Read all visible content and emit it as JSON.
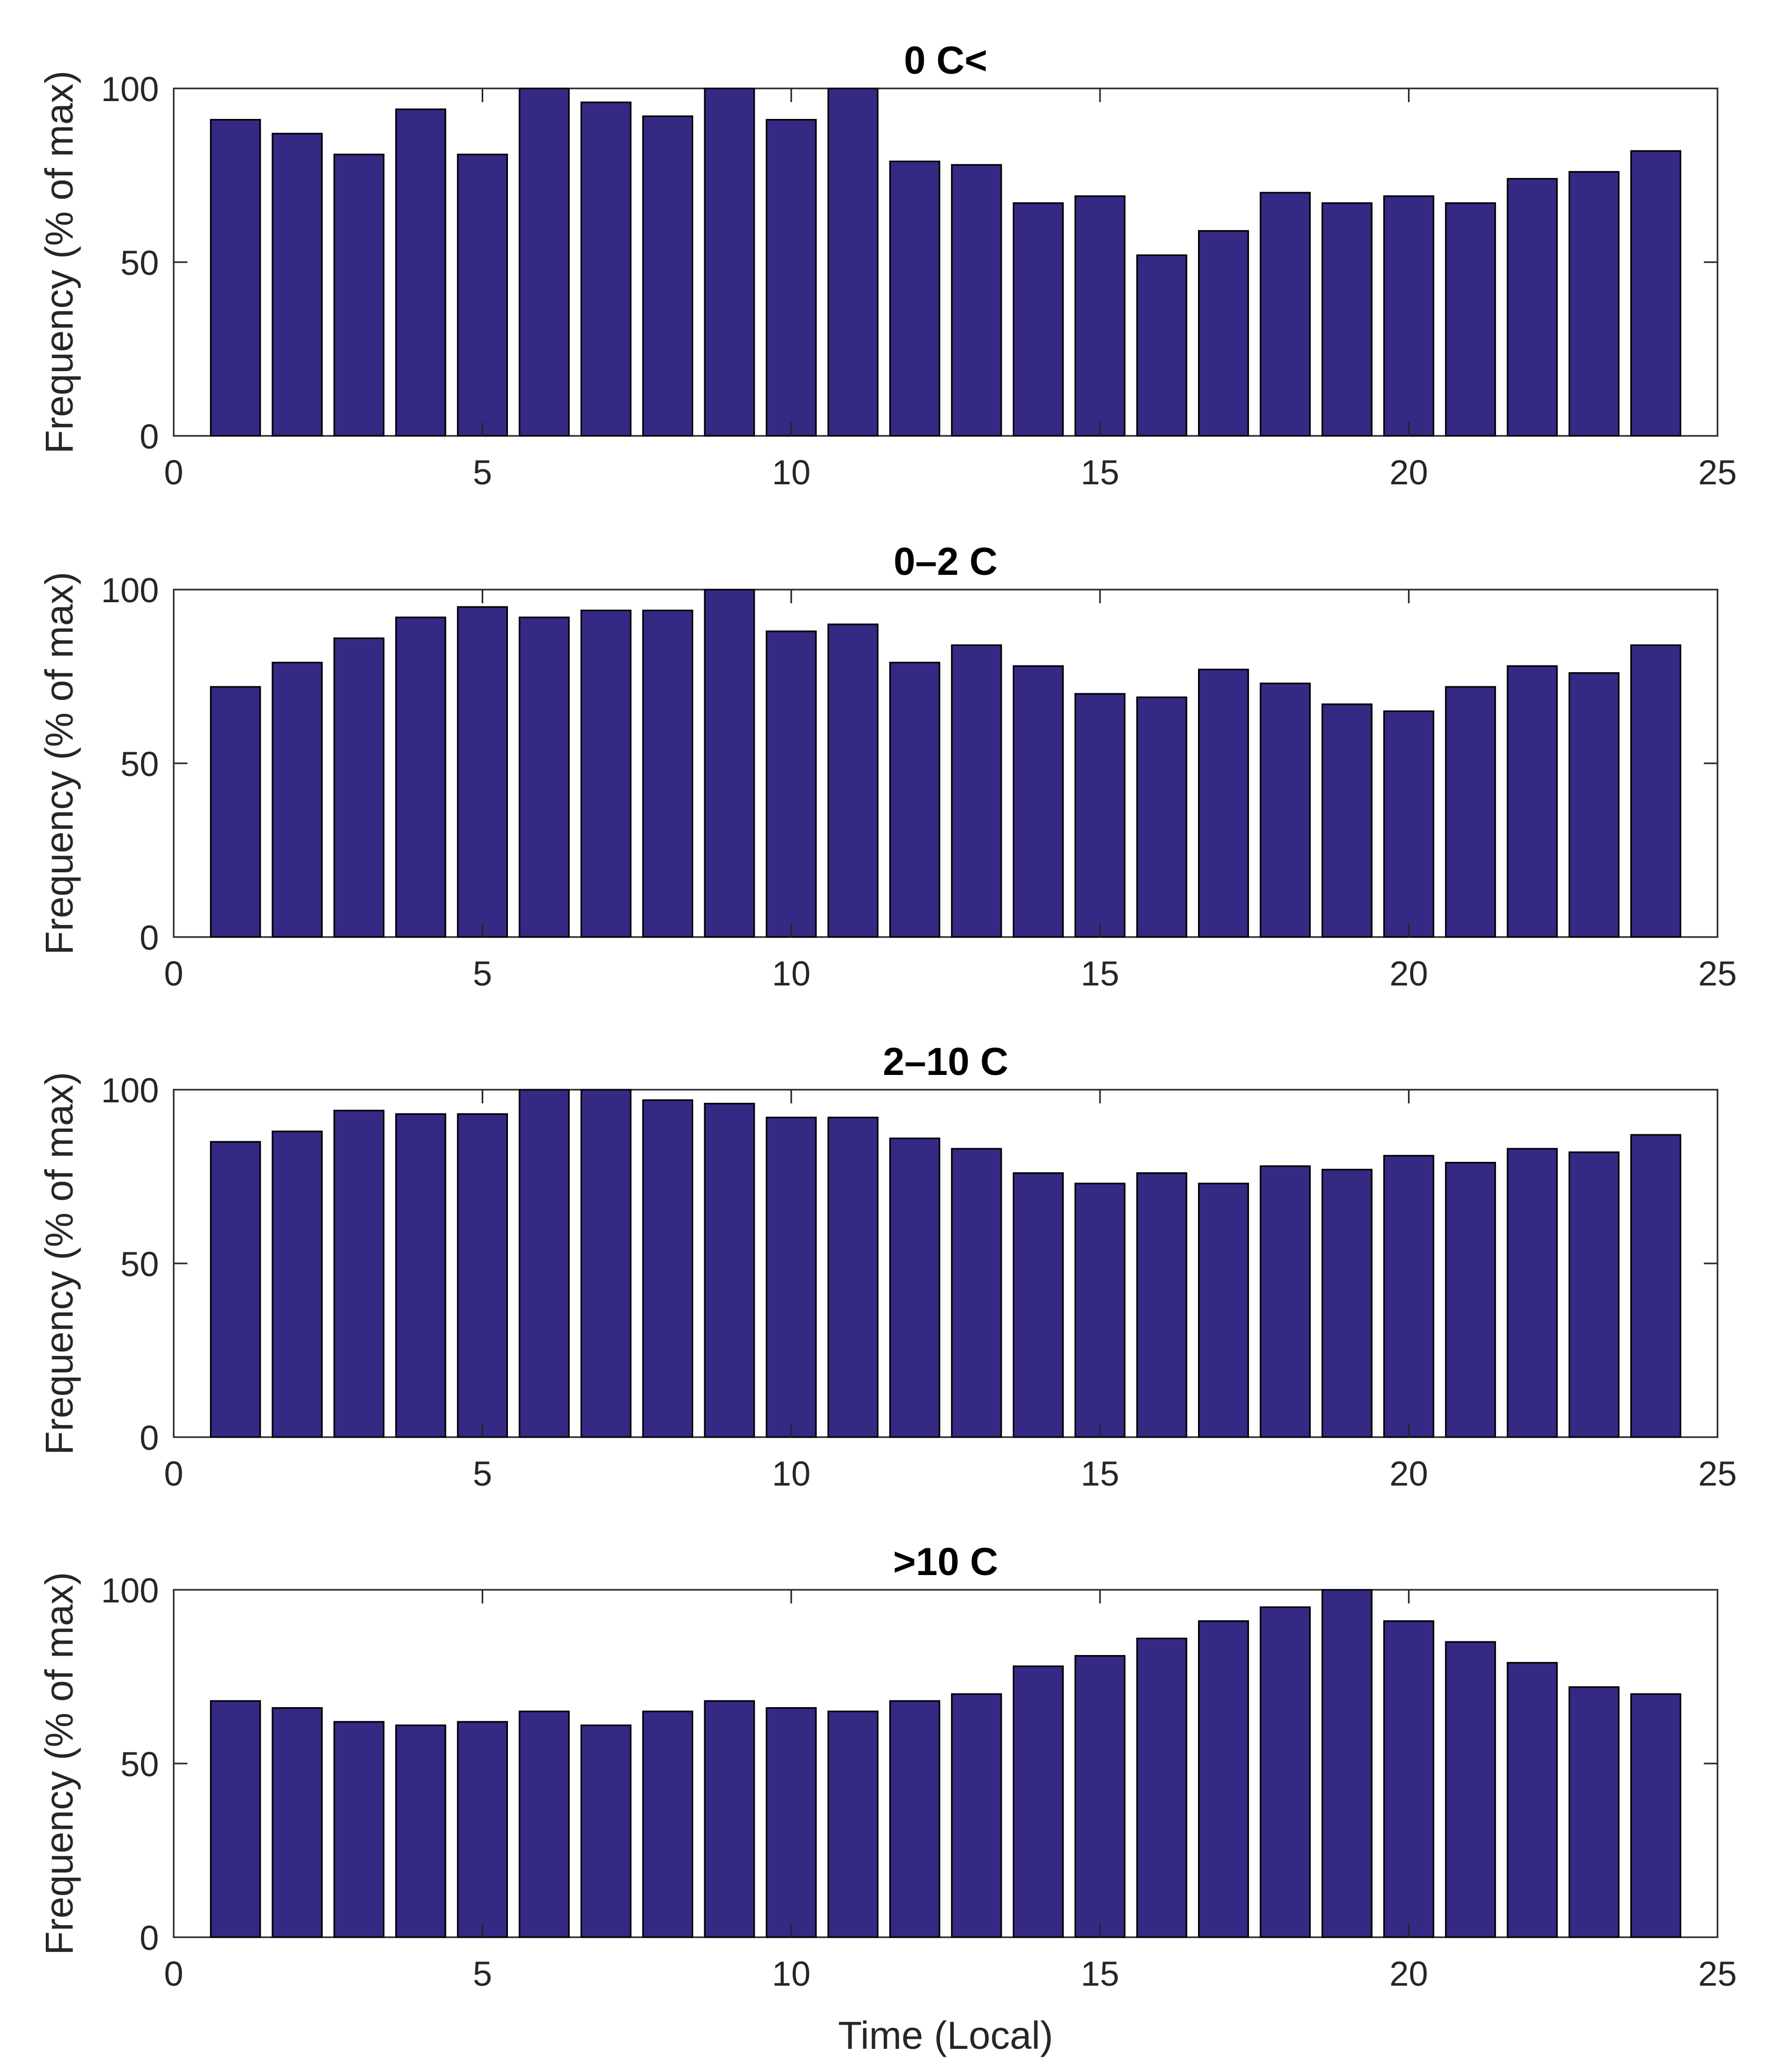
{
  "colors": {
    "bar_fill": "#342a84",
    "bar_edge": "#000000",
    "axes": "#262626"
  },
  "shared_xlabel": "Time (Local)",
  "chart_data": [
    {
      "type": "bar",
      "title": "0 C<",
      "xlabel": "",
      "ylabel": "Frequency (% of max)",
      "x": [
        1,
        2,
        3,
        4,
        5,
        6,
        7,
        8,
        9,
        10,
        11,
        12,
        13,
        14,
        15,
        16,
        17,
        18,
        19,
        20,
        21,
        22,
        23,
        24
      ],
      "values": [
        91,
        87,
        81,
        94,
        81,
        100,
        96,
        92,
        100,
        91,
        100,
        79,
        78,
        67,
        69,
        52,
        59,
        70,
        67,
        69,
        67,
        74,
        76,
        82
      ],
      "xlim": [
        0,
        25
      ],
      "ylim": [
        0,
        100
      ],
      "xticks": [
        0,
        5,
        10,
        15,
        20,
        25
      ],
      "yticks": [
        0,
        50,
        100
      ]
    },
    {
      "type": "bar",
      "title": "0–2 C",
      "xlabel": "",
      "ylabel": "Frequency (% of max)",
      "x": [
        1,
        2,
        3,
        4,
        5,
        6,
        7,
        8,
        9,
        10,
        11,
        12,
        13,
        14,
        15,
        16,
        17,
        18,
        19,
        20,
        21,
        22,
        23,
        24
      ],
      "values": [
        72,
        79,
        86,
        92,
        95,
        92,
        94,
        94,
        100,
        88,
        90,
        79,
        84,
        78,
        70,
        69,
        77,
        73,
        67,
        65,
        72,
        78,
        76,
        84
      ],
      "xlim": [
        0,
        25
      ],
      "ylim": [
        0,
        100
      ],
      "xticks": [
        0,
        5,
        10,
        15,
        20,
        25
      ],
      "yticks": [
        0,
        50,
        100
      ]
    },
    {
      "type": "bar",
      "title": "2–10 C",
      "xlabel": "",
      "ylabel": "Frequency (% of max)",
      "x": [
        1,
        2,
        3,
        4,
        5,
        6,
        7,
        8,
        9,
        10,
        11,
        12,
        13,
        14,
        15,
        16,
        17,
        18,
        19,
        20,
        21,
        22,
        23,
        24
      ],
      "values": [
        85,
        88,
        94,
        93,
        93,
        100,
        100,
        97,
        96,
        92,
        92,
        86,
        83,
        76,
        73,
        76,
        73,
        78,
        77,
        81,
        79,
        83,
        82,
        87
      ],
      "xlim": [
        0,
        25
      ],
      "ylim": [
        0,
        100
      ],
      "xticks": [
        0,
        5,
        10,
        15,
        20,
        25
      ],
      "yticks": [
        0,
        50,
        100
      ]
    },
    {
      "type": "bar",
      "title": ">10 C",
      "xlabel": "Time (Local)",
      "ylabel": "Frequency (% of max)",
      "x": [
        1,
        2,
        3,
        4,
        5,
        6,
        7,
        8,
        9,
        10,
        11,
        12,
        13,
        14,
        15,
        16,
        17,
        18,
        19,
        20,
        21,
        22,
        23,
        24
      ],
      "values": [
        68,
        66,
        62,
        61,
        62,
        65,
        61,
        65,
        68,
        66,
        65,
        68,
        70,
        78,
        81,
        86,
        91,
        95,
        100,
        91,
        85,
        79,
        72,
        70
      ],
      "xlim": [
        0,
        25
      ],
      "ylim": [
        0,
        100
      ],
      "xticks": [
        0,
        5,
        10,
        15,
        20,
        25
      ],
      "yticks": [
        0,
        50,
        100
      ]
    }
  ]
}
